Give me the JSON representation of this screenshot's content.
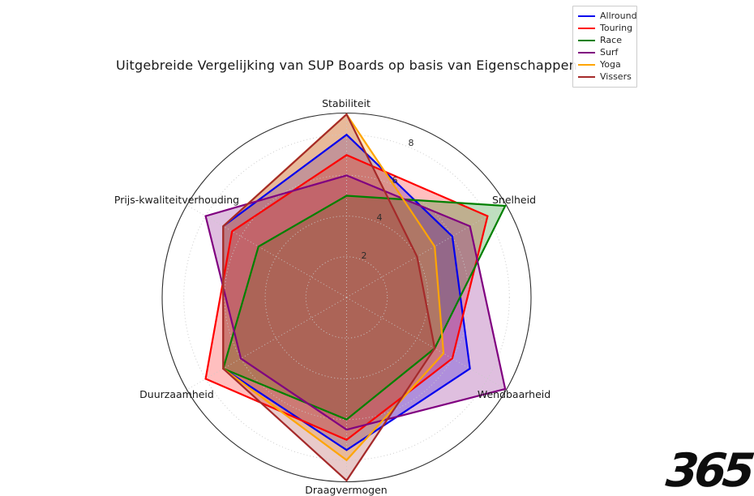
{
  "title": "Uitgebreide Vergelijking van SUP Boards op basis van Eigenschappen",
  "watermark": "365",
  "chart_data": {
    "type": "radar",
    "categories": [
      "Stabiliteit",
      "Snelheid",
      "Wendbaarheid",
      "Draagvermogen",
      "Duurzaamheid",
      "Prijs-kwaliteitverhouding"
    ],
    "series": [
      {
        "name": "Allround",
        "color": "#0000ee",
        "values": [
          8,
          6,
          7,
          7.5,
          7,
          7
        ]
      },
      {
        "name": "Touring",
        "color": "#ff0000",
        "values": [
          7,
          8,
          6,
          7,
          8,
          6.5
        ]
      },
      {
        "name": "Race",
        "color": "#008000",
        "values": [
          5,
          9,
          5,
          6,
          7,
          5
        ]
      },
      {
        "name": "Surf",
        "color": "#800080",
        "values": [
          6,
          7,
          9,
          6.5,
          6,
          8
        ]
      },
      {
        "name": "Yoga",
        "color": "#ffa500",
        "values": [
          9,
          5,
          5.5,
          8,
          7,
          7
        ]
      },
      {
        "name": "Vissers",
        "color": "#a52a2a",
        "values": [
          9,
          4,
          5,
          9,
          7,
          7
        ]
      }
    ],
    "rticks": [
      2,
      4,
      6,
      8
    ],
    "rmax": 9.06,
    "fill_alpha": 0.25,
    "grid": true,
    "legend_position": "top-right",
    "grid_color": "#c9c9c9",
    "outer_circle_color": "#2f2f2f"
  }
}
